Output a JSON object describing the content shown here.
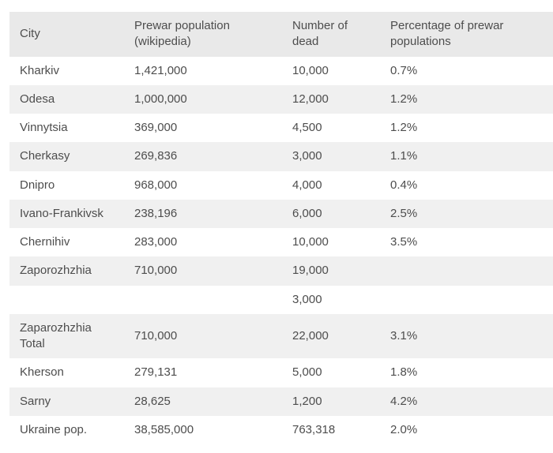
{
  "colors": {
    "page_background": "#ffffff",
    "header_background": "#e9e9e9",
    "stripe_background": "#f0f0f0",
    "text": "#4d4d4d"
  },
  "chart_data": {
    "type": "table",
    "columns": [
      "City",
      "Prewar population\n(wikipedia)",
      "Number of\ndead",
      "Percentage of prewar\npopulations"
    ],
    "rows": [
      {
        "city": "Kharkiv",
        "population": "1,421,000",
        "dead": "10,000",
        "percentage": "0.7%"
      },
      {
        "city": "Odesa",
        "population": "1,000,000",
        "dead": "12,000",
        "percentage": "1.2%"
      },
      {
        "city": "Vinnytsia",
        "population": "369,000",
        "dead": "4,500",
        "percentage": "1.2%"
      },
      {
        "city": "Cherkasy",
        "population": "269,836",
        "dead": "3,000",
        "percentage": "1.1%"
      },
      {
        "city": "Dnipro",
        "population": "968,000",
        "dead": "4,000",
        "percentage": "0.4%"
      },
      {
        "city": "Ivano-Frankivsk",
        "population": "238,196",
        "dead": "6,000",
        "percentage": "2.5%"
      },
      {
        "city": "Chernihiv",
        "population": "283,000",
        "dead": "10,000",
        "percentage": "3.5%"
      },
      {
        "city": "Zaporozhzhia",
        "population": "710,000",
        "dead": "19,000",
        "percentage": ""
      },
      {
        "city": "",
        "population": "",
        "dead": "3,000",
        "percentage": ""
      },
      {
        "city": "Zaparozhzhia\nTotal",
        "population": "710,000",
        "dead": "22,000",
        "percentage": "3.1%"
      },
      {
        "city": "Kherson",
        "population": "279,131",
        "dead": "5,000",
        "percentage": "1.8%"
      },
      {
        "city": "Sarny",
        "population": "28,625",
        "dead": "1,200",
        "percentage": "4.2%"
      },
      {
        "city": "Ukraine pop.",
        "population": "38,585,000",
        "dead": "763,318",
        "percentage": "2.0%"
      }
    ]
  }
}
